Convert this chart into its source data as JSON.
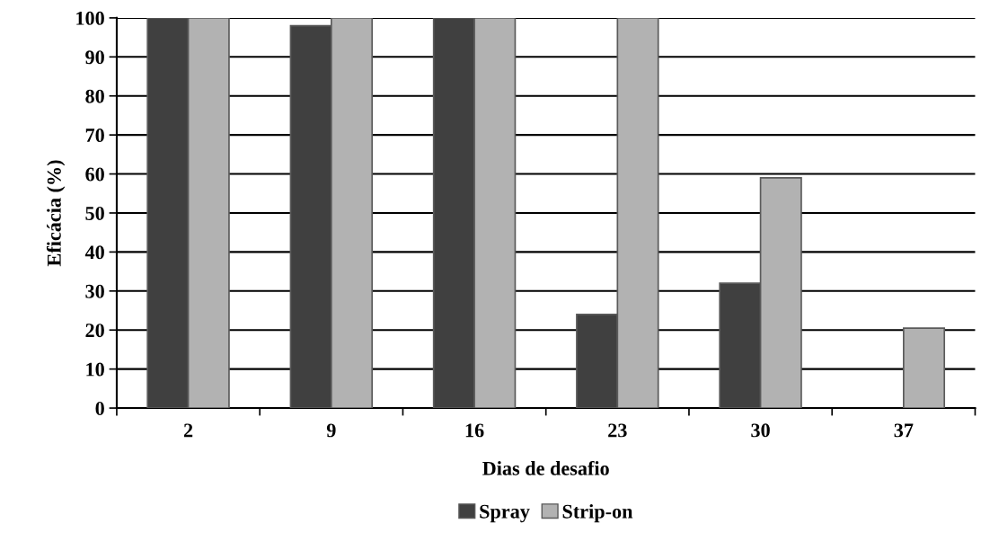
{
  "chart_data": {
    "type": "bar",
    "xlabel": "Dias de desafio",
    "ylabel": "Eficácia (%)",
    "categories": [
      "2",
      "9",
      "16",
      "23",
      "30",
      "37"
    ],
    "series": [
      {
        "name": "Spray",
        "color": "#404040",
        "values": [
          100,
          98,
          100,
          24,
          32,
          null
        ]
      },
      {
        "name": "Strip-on",
        "color": "#b2b2b2",
        "values": [
          100,
          100,
          100,
          100,
          59,
          20.5
        ]
      }
    ],
    "ylim": [
      0,
      100
    ],
    "yticks": [
      0,
      10,
      20,
      30,
      40,
      50,
      60,
      70,
      80,
      90,
      100
    ],
    "grid": "y",
    "legend": "bottom"
  }
}
